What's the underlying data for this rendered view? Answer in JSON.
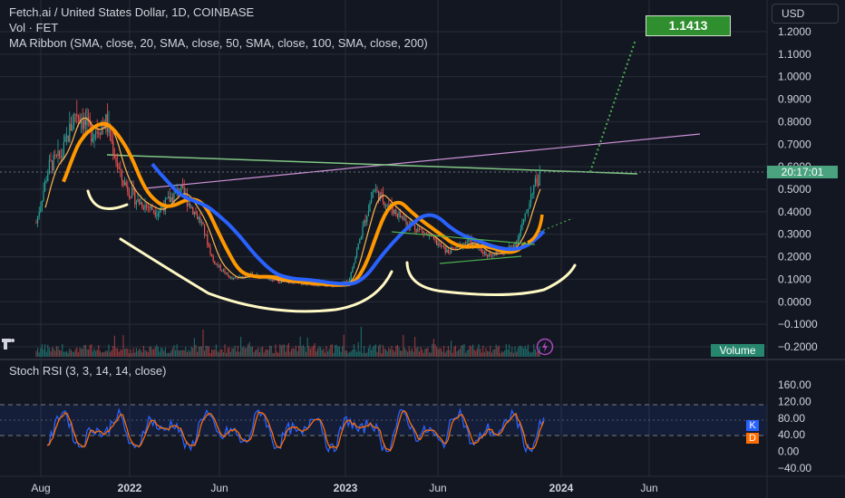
{
  "header": {
    "title": "Fetch.ai / United States Dollar, 1D, COINBASE",
    "volume_label": "Vol · FET",
    "ma_ribbon_label": "MA Ribbon (SMA, close, 20, SMA, close, 50, SMA, close, 100, SMA, close, 200)"
  },
  "currency_button": "USD",
  "price_badge": "20:17:01",
  "volume_badge": "Volume",
  "target_badge": "1.1413",
  "stoch_label": "Stoch RSI (3, 3, 14, 14, close)",
  "k_badge": "K",
  "d_badge": "D",
  "colors": {
    "background": "#131722",
    "grid": "#2a2e39",
    "up": "#26a69a",
    "down": "#ef5350",
    "ma20": "#ffb74d",
    "ma50": "#ff9800",
    "ma100": "#2962ff",
    "stoch_k": "#2962ff",
    "stoch_d": "#ff6d00",
    "annotation_white": "#fff9c4",
    "trendline_green": "#81c784",
    "trendline_purple": "#ce93d8",
    "target_green": "#43a047"
  },
  "chart_data": [
    {
      "type": "candlestick",
      "title": "Fetch.ai / United States Dollar, 1D, COINBASE",
      "x_ticks": [
        "Aug",
        "2022",
        "Jun",
        "2023",
        "Jun",
        "2024",
        "Jun"
      ],
      "y_ticks": [
        "1.2000",
        "1.1000",
        "1.0000",
        "0.9000",
        "0.8000",
        "0.7000",
        "0.6000",
        "0.5000",
        "0.4000",
        "0.3000",
        "0.2000",
        "0.1000",
        "0.0000",
        "−0.1000",
        "−0.2000"
      ],
      "ylim": [
        -0.2,
        1.2
      ],
      "price_series": {
        "name": "FET/USD",
        "x": [
          "2021-07-20",
          "2021-08-10",
          "2021-09-01",
          "2021-09-25",
          "2021-10-20",
          "2021-11-15",
          "2021-12-10",
          "2022-01-05",
          "2022-02-10",
          "2022-03-20",
          "2022-04-25",
          "2022-05-15",
          "2022-06-15",
          "2022-07-20",
          "2022-09-01",
          "2022-10-15",
          "2022-12-01",
          "2022-12-30",
          "2023-01-20",
          "2023-02-10",
          "2023-03-10",
          "2023-04-10",
          "2023-05-10",
          "2023-06-15",
          "2023-07-20",
          "2023-08-20",
          "2023-09-20",
          "2023-10-10",
          "2023-10-25",
          "2023-11-05",
          "2023-11-20"
        ],
        "values": [
          0.35,
          0.6,
          0.65,
          0.85,
          0.75,
          0.8,
          0.55,
          0.45,
          0.4,
          0.5,
          0.35,
          0.18,
          0.1,
          0.12,
          0.09,
          0.08,
          0.07,
          0.09,
          0.3,
          0.5,
          0.42,
          0.35,
          0.3,
          0.22,
          0.27,
          0.21,
          0.22,
          0.27,
          0.38,
          0.5,
          0.56
        ]
      },
      "moving_averages": [
        {
          "name": "SMA 20",
          "color": "#ffb74d"
        },
        {
          "name": "SMA 50",
          "color": "#ff9800"
        },
        {
          "name": "SMA 100",
          "color": "#2962ff"
        }
      ],
      "annotations": {
        "current_price_line": 0.565,
        "projected_target": 1.1413,
        "green_trendline": [
          [
            "2021-11-01",
            0.65
          ],
          [
            "2024-04-15",
            0.57
          ]
        ],
        "purple_trendline": [
          [
            "2022-02-01",
            0.52
          ],
          [
            "2024-07-01",
            0.74
          ]
        ]
      }
    },
    {
      "type": "line",
      "title": "Stoch RSI (3, 3, 14, 14, close)",
      "y_ticks": [
        "160.00",
        "120.00",
        "80.00",
        "40.00",
        "0.00",
        "−40.00"
      ],
      "ylim": [
        -40,
        160
      ],
      "bands": [
        20,
        80
      ],
      "series": [
        {
          "name": "K",
          "color": "#2962ff"
        },
        {
          "name": "D",
          "color": "#ff6d00"
        }
      ]
    }
  ]
}
